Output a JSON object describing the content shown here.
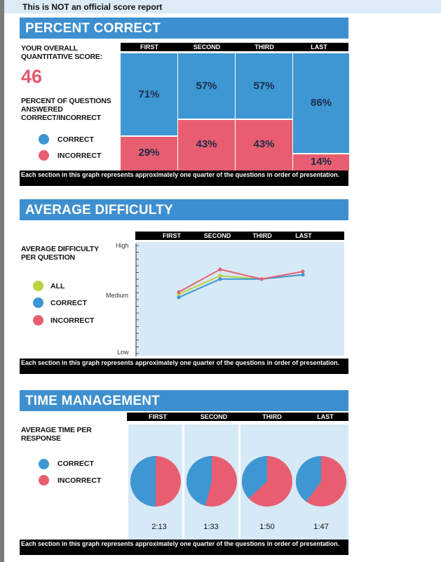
{
  "banner": {
    "text": "This is NOT an official score report"
  },
  "percent_correct": {
    "header": "PERCENT CORRECT",
    "score_label": "YOUR OVERALL QUANTITATIVE SCORE:",
    "score": "46",
    "questions_label": "PERCENT OF QUESTIONS ANSWERED CORRECT/INCORRECT",
    "legend": {
      "correct": "CORRECT",
      "incorrect": "INCORRECT"
    },
    "columns": [
      "FIRST",
      "SECOND",
      "THIRD",
      "LAST"
    ],
    "correct_pct": [
      "71%",
      "57%",
      "57%",
      "86%"
    ],
    "incorrect_pct": [
      "29%",
      "43%",
      "43%",
      "14%"
    ],
    "note": "Each section in this graph represents approximately one quarter of the questions in order of presentation."
  },
  "average_difficulty": {
    "header": "AVERAGE DIFFICULTY",
    "label": "AVERAGE DIFFICULTY PER QUESTION",
    "legend": {
      "all": "ALL",
      "correct": "CORRECT",
      "incorrect": "INCORRECT"
    },
    "columns": [
      "FIRST",
      "SECOND",
      "THIRD",
      "LAST"
    ],
    "axis": {
      "high": "High",
      "medium": "Medium",
      "low": "Low"
    },
    "note": "Each section in this graph represents approximately one quarter of the questions in order of presentation."
  },
  "time_management": {
    "header": "TIME MANAGEMENT",
    "label": "AVERAGE TIME PER RESPONSE",
    "legend": {
      "correct": "CORRECT",
      "incorrect": "INCORRECT"
    },
    "columns": [
      "FIRST",
      "SECOND",
      "THIRD",
      "LAST"
    ],
    "times": [
      "2:13",
      "1:33",
      "1:50",
      "1:47"
    ],
    "note": "Each section in this graph represents approximately one quarter of the questions in order of presentation."
  },
  "colors": {
    "correct": "#3d97d3",
    "incorrect": "#e85e70",
    "all": "#b9d33f",
    "header": "#3d8fcf",
    "panel": "#d6e9f6"
  },
  "chart_data": [
    {
      "type": "bar",
      "title": "PERCENT CORRECT",
      "categories": [
        "FIRST",
        "SECOND",
        "THIRD",
        "LAST"
      ],
      "series": [
        {
          "name": "CORRECT",
          "values": [
            71,
            57,
            57,
            86
          ]
        },
        {
          "name": "INCORRECT",
          "values": [
            29,
            43,
            43,
            14
          ]
        }
      ],
      "stacked": true,
      "ylim": [
        0,
        100
      ]
    },
    {
      "type": "line",
      "title": "AVERAGE DIFFICULTY",
      "categories": [
        "FIRST",
        "SECOND",
        "THIRD",
        "LAST"
      ],
      "ylabel": "AVERAGE DIFFICULTY PER QUESTION",
      "yticks": [
        "Low",
        "Medium",
        "High"
      ],
      "ylim": [
        0,
        1
      ],
      "series": [
        {
          "name": "ALL",
          "values": [
            0.55,
            0.72,
            0.69,
            0.73
          ]
        },
        {
          "name": "CORRECT",
          "values": [
            0.52,
            0.69,
            0.69,
            0.73
          ]
        },
        {
          "name": "INCORRECT",
          "values": [
            0.57,
            0.78,
            0.69,
            0.76
          ]
        }
      ]
    },
    {
      "type": "pie",
      "title": "TIME MANAGEMENT",
      "categories": [
        "FIRST",
        "SECOND",
        "THIRD",
        "LAST"
      ],
      "labels": [
        "2:13",
        "1:33",
        "1:50",
        "1:47"
      ],
      "series": [
        {
          "name": "CORRECT",
          "values": [
            50,
            46,
            37,
            40
          ]
        },
        {
          "name": "INCORRECT",
          "values": [
            50,
            54,
            63,
            60
          ]
        }
      ]
    }
  ]
}
